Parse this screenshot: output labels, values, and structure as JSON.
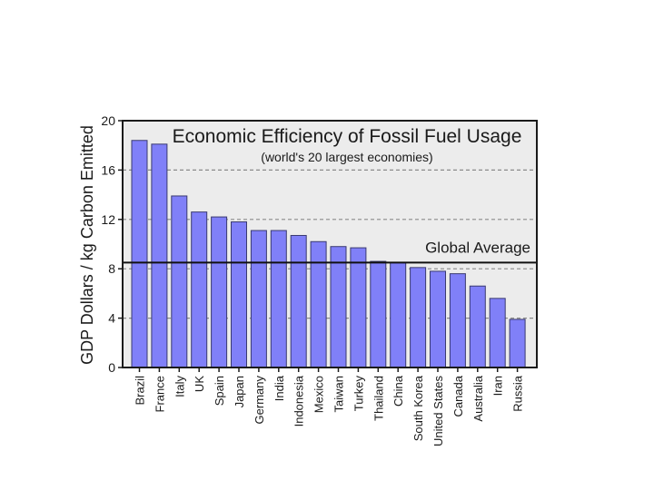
{
  "chart_data": {
    "type": "bar",
    "title": "Economic Efficiency of Fossil Fuel Usage",
    "subtitle": "(world's 20 largest economies)",
    "xlabel": "",
    "ylabel": "GDP Dollars / kg Carbon Emitted",
    "ylim": [
      0,
      20
    ],
    "yticks": [
      0,
      4,
      8,
      12,
      16,
      20
    ],
    "grid": true,
    "categories": [
      "Brazil",
      "France",
      "Italy",
      "UK",
      "Spain",
      "Japan",
      "Germany",
      "India",
      "Indonesia",
      "Mexico",
      "Taiwan",
      "Turkey",
      "Thailand",
      "China",
      "South Korea",
      "United States",
      "Canada",
      "Australia",
      "Iran",
      "Russia"
    ],
    "values": [
      18.4,
      18.1,
      13.9,
      12.6,
      12.2,
      11.8,
      11.1,
      11.1,
      10.7,
      10.2,
      9.8,
      9.7,
      8.6,
      8.5,
      8.1,
      7.8,
      7.6,
      6.6,
      5.6,
      3.9
    ],
    "reference_line": {
      "label": "Global Average",
      "value": 8.5
    },
    "colors": {
      "bar": "#8080f8",
      "plot_background": "#ececec",
      "reference_line": "#111111"
    }
  }
}
